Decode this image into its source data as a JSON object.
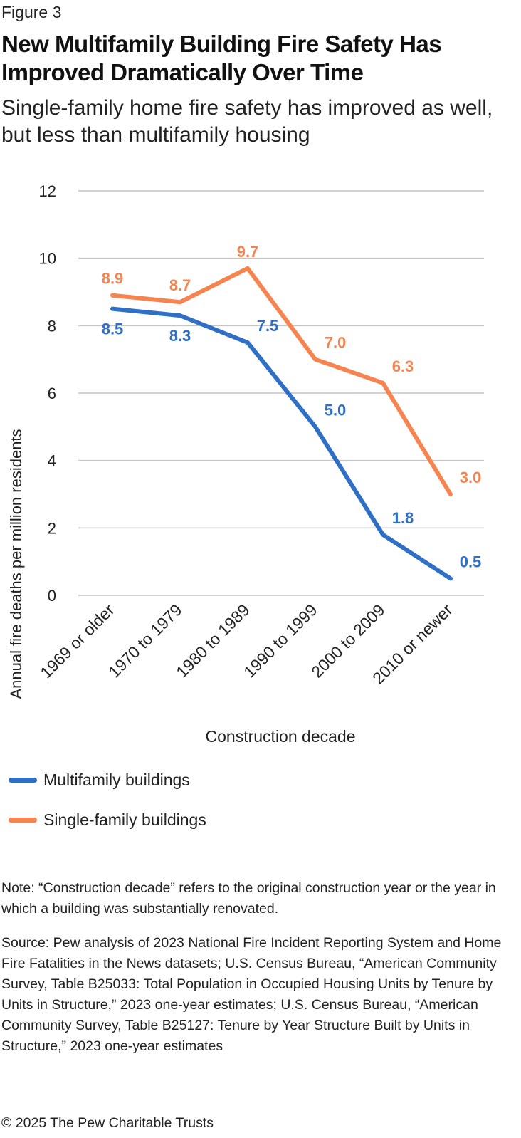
{
  "figure_label": "Figure 3",
  "title": "New Multifamily Building Fire Safety Has Improved Dramatically Over Time",
  "subtitle": "Single-family home fire safety has improved as well, but less than multifamily housing",
  "legend": [
    {
      "label": "Multifamily buildings",
      "color": "#2f6fc6"
    },
    {
      "label": "Single-family buildings",
      "color": "#f58450"
    }
  ],
  "note": "Note: “Construction decade” refers to the original construction year or the year in which a building was substantially renovated.",
  "source": "Source: Pew analysis of 2023 National Fire Incident Reporting System and Home Fire Fatalities in the News datasets; U.S. Census Bureau, “American Community Survey, Table B25033: Total Population in Occupied Housing Units by Tenure by Units in Structure,” 2023 one-year estimates; U.S. Census Bureau, “American Community Survey, Table B25127: Tenure by Year Structure Built by Units in Structure,” 2023 one-year estimates",
  "copyright": "© 2025 The Pew Charitable Trusts",
  "chart_data": {
    "type": "line",
    "xlabel": "Construction decade",
    "ylabel": "Annual fire deaths per million residents",
    "categories": [
      "1969 or older",
      "1970 to 1979",
      "1980 to 1989",
      "1990 to 1999",
      "2000 to 2009",
      "2010 or newer"
    ],
    "ylim": [
      0,
      12
    ],
    "yticks": [
      0,
      2,
      4,
      6,
      8,
      10,
      12
    ],
    "grid": true,
    "legend_position": "bottom-left",
    "series": [
      {
        "name": "Multifamily buildings",
        "color": "#2f6fc6",
        "values": [
          8.5,
          8.3,
          7.5,
          5.0,
          1.8,
          0.5
        ],
        "labels": [
          "8.5",
          "8.3",
          "7.5",
          "5.0",
          "1.8",
          "0.5"
        ]
      },
      {
        "name": "Single-family buildings",
        "color": "#f58450",
        "values": [
          8.9,
          8.7,
          9.7,
          7.0,
          6.3,
          3.0
        ],
        "labels": [
          "8.9",
          "8.7",
          "9.7",
          "7.0",
          "6.3",
          "3.0"
        ]
      }
    ]
  }
}
